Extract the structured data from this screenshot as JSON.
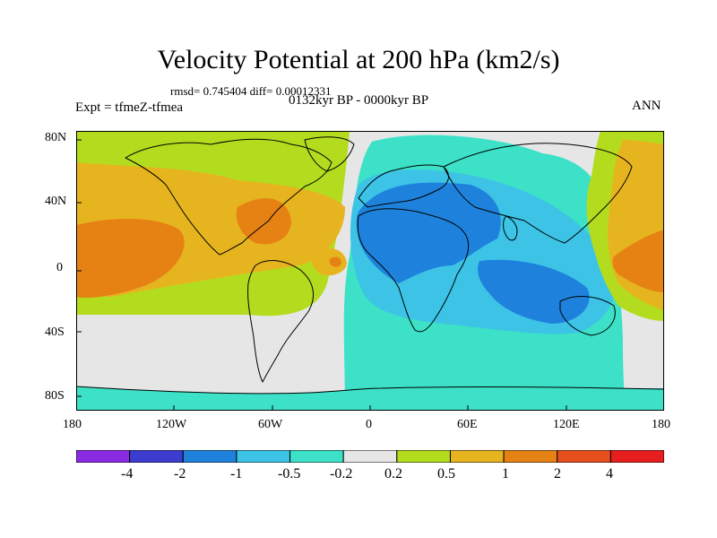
{
  "figure": {
    "title": "Velocity Potential at 200 hPa (km2/s)",
    "stats": "rmsd= 0.745404 diff= 0.00012331",
    "experiment": "Expt = tfmeZ-tfmea",
    "period": "0132kyr BP - 0000kyr BP",
    "season": "ANN"
  },
  "axes": {
    "lat_labels": [
      "80N",
      "40N",
      "0",
      "40S",
      "80S"
    ],
    "lon_labels": [
      "180",
      "120W",
      "60W",
      "0",
      "60E",
      "120E",
      "180"
    ]
  },
  "colorbar": {
    "labels": [
      "-4",
      "-2",
      "-1",
      "-0.5",
      "-0.2",
      "0.2",
      "0.5",
      "1",
      "2",
      "4"
    ],
    "colors": [
      "#8a2be2",
      "#3c3ccf",
      "#1e82dc",
      "#3cc3e6",
      "#3ce1c8",
      "#e6e6e6",
      "#b4dc1e",
      "#e6b41e",
      "#e68214",
      "#e6501e",
      "#e61e1e"
    ]
  },
  "chart_data": {
    "type": "contour_map",
    "title": "Velocity Potential at 200 hPa (km2/s)",
    "projection": "cylindrical equidistant",
    "x_range": [
      -180,
      180
    ],
    "y_range": [
      -90,
      90
    ],
    "levels": [
      -4,
      -2,
      -1,
      -0.5,
      -0.2,
      0.2,
      0.5,
      1,
      2,
      4
    ],
    "features": [
      {
        "name": "positive anomaly over Americas and eastern Pacific",
        "sign": "positive",
        "peak": 2
      },
      {
        "name": "positive anomaly over western Pacific / Maritime Continent",
        "sign": "positive",
        "peak": 2
      },
      {
        "name": "negative anomaly over Africa, Europe and Indian Ocean",
        "sign": "negative",
        "peak": -1
      }
    ]
  }
}
